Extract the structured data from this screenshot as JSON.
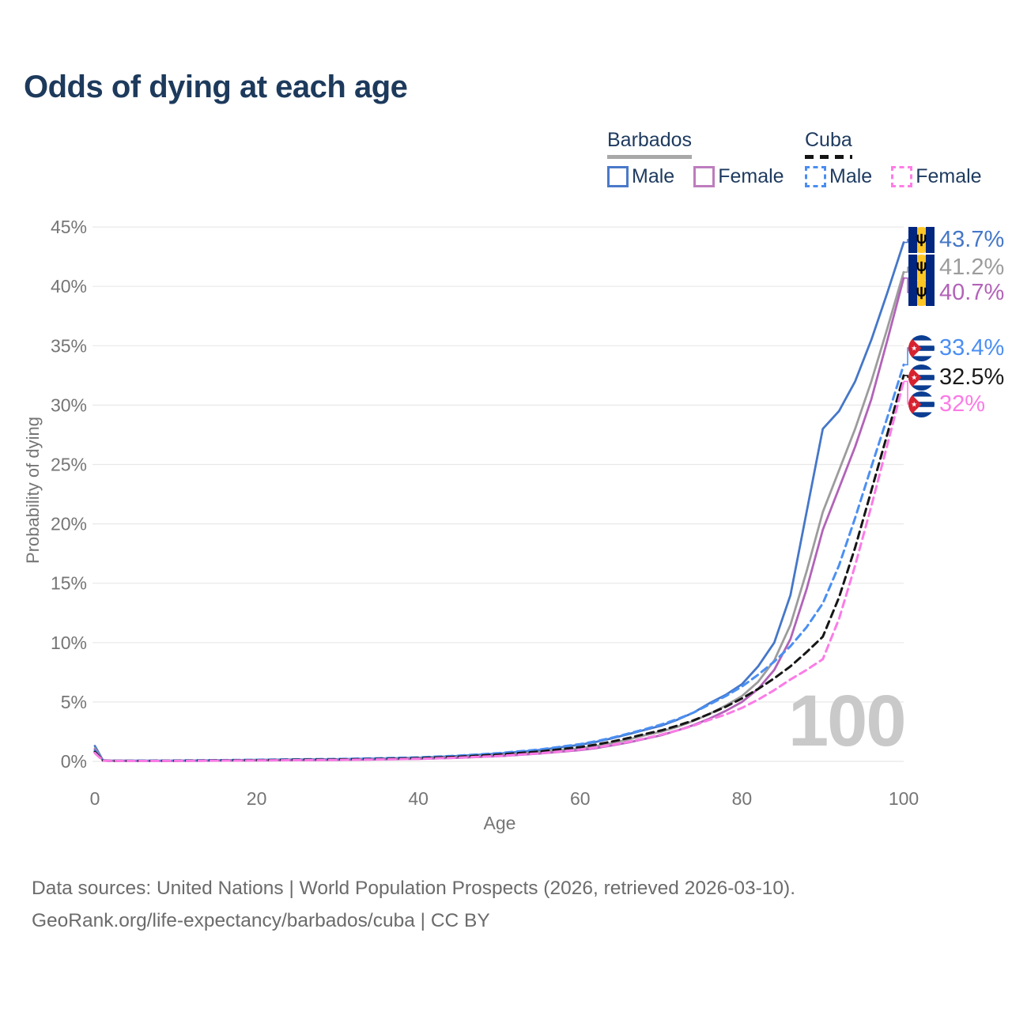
{
  "title": "Odds of dying at each age",
  "legend": {
    "groups": [
      {
        "label": "Barbados",
        "style": "solid",
        "underline_color": "#a8a8a8",
        "items": [
          {
            "label": "Male",
            "color": "#4a79c9"
          },
          {
            "label": "Female",
            "color": "#bd7cbe"
          }
        ]
      },
      {
        "label": "Cuba",
        "style": "dashed",
        "underline_color": "#141414",
        "items": [
          {
            "label": "Male",
            "color": "#4a8df0"
          },
          {
            "label": "Female",
            "color": "#ff7de5"
          }
        ]
      }
    ]
  },
  "chart_data": {
    "type": "line",
    "title": "Odds of dying at each age",
    "xlabel": "Age",
    "ylabel": "Probability of dying",
    "xlim": [
      0,
      100
    ],
    "ylim": [
      0,
      45
    ],
    "x_ticks": [
      0,
      20,
      40,
      60,
      80,
      100
    ],
    "y_ticks": [
      "0%",
      "5%",
      "10%",
      "15%",
      "20%",
      "25%",
      "30%",
      "35%",
      "40%",
      "45%"
    ],
    "grid": "horizontal",
    "legend_position": "top-right",
    "watermark": "100",
    "ages": [
      0,
      1,
      2,
      5,
      10,
      15,
      20,
      25,
      30,
      35,
      40,
      45,
      50,
      55,
      60,
      62,
      64,
      66,
      68,
      70,
      72,
      74,
      76,
      78,
      80,
      82,
      84,
      86,
      88,
      90,
      92,
      94,
      96,
      98,
      100
    ],
    "series": [
      {
        "id": "barbados-male",
        "name": "Barbados Male",
        "color": "#4577c8",
        "dash": "solid",
        "end_value_pct": 43.7,
        "values": [
          1.3,
          0.09,
          0.06,
          0.05,
          0.06,
          0.09,
          0.12,
          0.15,
          0.18,
          0.23,
          0.3,
          0.45,
          0.65,
          0.95,
          1.4,
          1.65,
          1.95,
          2.3,
          2.65,
          3.0,
          3.5,
          4.1,
          4.9,
          5.6,
          6.5,
          8.0,
          10.0,
          14.0,
          21.0,
          28.0,
          29.5,
          32.0,
          35.5,
          39.5,
          43.7
        ]
      },
      {
        "id": "barbados-total",
        "name": "Barbados",
        "color": "#9c9c9c",
        "dash": "solid",
        "end_value_pct": 41.2,
        "values": [
          1.1,
          0.08,
          0.05,
          0.04,
          0.05,
          0.07,
          0.1,
          0.12,
          0.15,
          0.19,
          0.25,
          0.36,
          0.52,
          0.78,
          1.1,
          1.3,
          1.55,
          1.85,
          2.2,
          2.5,
          2.9,
          3.4,
          4.0,
          4.7,
          5.5,
          6.7,
          8.5,
          11.5,
          16.0,
          21.0,
          24.5,
          28.0,
          32.0,
          36.5,
          41.2
        ]
      },
      {
        "id": "barbados-female",
        "name": "Barbados Female",
        "color": "#b263b8",
        "dash": "solid",
        "end_value_pct": 40.7,
        "values": [
          1.0,
          0.07,
          0.05,
          0.04,
          0.04,
          0.06,
          0.08,
          0.1,
          0.12,
          0.16,
          0.21,
          0.3,
          0.44,
          0.66,
          0.95,
          1.12,
          1.35,
          1.6,
          1.9,
          2.2,
          2.6,
          3.05,
          3.6,
          4.25,
          5.0,
          6.1,
          7.7,
          10.3,
          14.5,
          19.5,
          23.0,
          26.5,
          30.5,
          35.5,
          40.7
        ]
      },
      {
        "id": "cuba-male",
        "name": "Cuba Male",
        "color": "#4b8ff2",
        "dash": "dashed",
        "end_value_pct": 33.4,
        "values": [
          0.9,
          0.08,
          0.05,
          0.05,
          0.07,
          0.1,
          0.13,
          0.17,
          0.2,
          0.26,
          0.33,
          0.48,
          0.7,
          1.0,
          1.45,
          1.7,
          2.0,
          2.35,
          2.7,
          3.1,
          3.55,
          4.1,
          4.8,
          5.5,
          6.3,
          7.3,
          8.4,
          9.7,
          11.3,
          13.3,
          16.5,
          20.5,
          24.8,
          29.0,
          33.4
        ]
      },
      {
        "id": "cuba-total",
        "name": "Cuba",
        "color": "#161616",
        "dash": "dashed",
        "end_value_pct": 32.5,
        "values": [
          0.8,
          0.07,
          0.04,
          0.04,
          0.05,
          0.08,
          0.1,
          0.13,
          0.16,
          0.2,
          0.27,
          0.39,
          0.57,
          0.83,
          1.2,
          1.42,
          1.68,
          1.97,
          2.3,
          2.6,
          3.0,
          3.45,
          4.0,
          4.6,
          5.3,
          6.1,
          7.0,
          8.0,
          9.2,
          10.5,
          13.8,
          18.0,
          22.8,
          27.6,
          32.5
        ]
      },
      {
        "id": "cuba-female",
        "name": "Cuba Female",
        "color": "#fb7be6",
        "dash": "dashed",
        "end_value_pct": 32.0,
        "values": [
          0.7,
          0.06,
          0.04,
          0.03,
          0.04,
          0.06,
          0.08,
          0.1,
          0.12,
          0.16,
          0.21,
          0.31,
          0.46,
          0.68,
          1.0,
          1.18,
          1.4,
          1.65,
          1.93,
          2.25,
          2.6,
          3.0,
          3.5,
          3.95,
          4.5,
          5.2,
          6.0,
          6.9,
          7.7,
          8.6,
          12.0,
          16.5,
          21.5,
          26.7,
          32.0
        ]
      }
    ]
  },
  "end_labels": [
    {
      "text": "43.7%",
      "color": "#4577c8",
      "flag": "barbados"
    },
    {
      "text": "41.2%",
      "color": "#9c9c9c",
      "flag": "barbados"
    },
    {
      "text": "40.7%",
      "color": "#b263b8",
      "flag": "barbados"
    },
    {
      "text": "33.4%",
      "color": "#4b8ff2",
      "flag": "cuba"
    },
    {
      "text": "32.5%",
      "color": "#1a1a1a",
      "flag": "cuba"
    },
    {
      "text": "32%",
      "color": "#fb7be6",
      "flag": "cuba"
    }
  ],
  "footer": {
    "line1": "Data sources: United Nations | World Population Prospects (2026, retrieved 2026-03-10).",
    "line2": "GeoRank.org/life-expectancy/barbados/cuba | CC BY"
  }
}
